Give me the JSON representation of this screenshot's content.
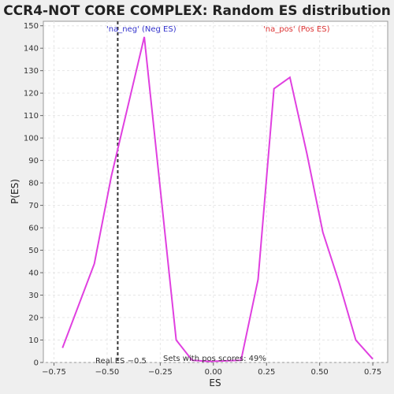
{
  "chart_data": {
    "type": "line",
    "title": "CCR4-NOT CORE COMPLEX: Random ES distribution",
    "xlabel": "ES",
    "ylabel": "P(ES)",
    "xlim": [
      -0.8,
      0.82
    ],
    "ylim": [
      0,
      152
    ],
    "x_ticks": [
      -0.75,
      -0.5,
      -0.25,
      0.0,
      0.25,
      0.5,
      0.75
    ],
    "x_tick_labels": [
      "−0.75",
      "−0.50",
      "−0.25",
      "0.00",
      "0.25",
      "0.50",
      "0.75"
    ],
    "y_ticks": [
      0,
      10,
      20,
      30,
      40,
      50,
      60,
      70,
      80,
      90,
      100,
      110,
      120,
      130,
      140,
      150
    ],
    "y_tick_labels": [
      "0",
      "10",
      "20",
      "30",
      "40",
      "50",
      "60",
      "70",
      "80",
      "90",
      "100",
      "110",
      "120",
      "130",
      "140",
      "150"
    ],
    "grid": true,
    "line_color": "#e040e0",
    "series": [
      {
        "x": [
          -0.71,
          -0.56,
          -0.48,
          -0.325,
          -0.175,
          -0.1,
          -0.02,
          0.13,
          0.21,
          0.285,
          0.36,
          0.44,
          0.515,
          0.59,
          0.67,
          0.75
        ],
        "values": [
          6.5,
          44,
          83,
          145,
          10,
          1,
          0.5,
          1,
          37,
          122,
          127,
          93,
          58,
          36,
          10,
          1.5
        ]
      }
    ],
    "real_es": {
      "x": -0.45,
      "label": "Real ES −0.5",
      "color": "#333333"
    },
    "annotations": {
      "neg": {
        "text": "'na_neg' (Neg ES)",
        "color": "#3333cc"
      },
      "pos": {
        "text": "'na_pos' (Pos ES)",
        "color": "#dd3333"
      },
      "pos_scores": {
        "text": "Sets with pos scores: 49%",
        "color": "#333333"
      }
    }
  }
}
